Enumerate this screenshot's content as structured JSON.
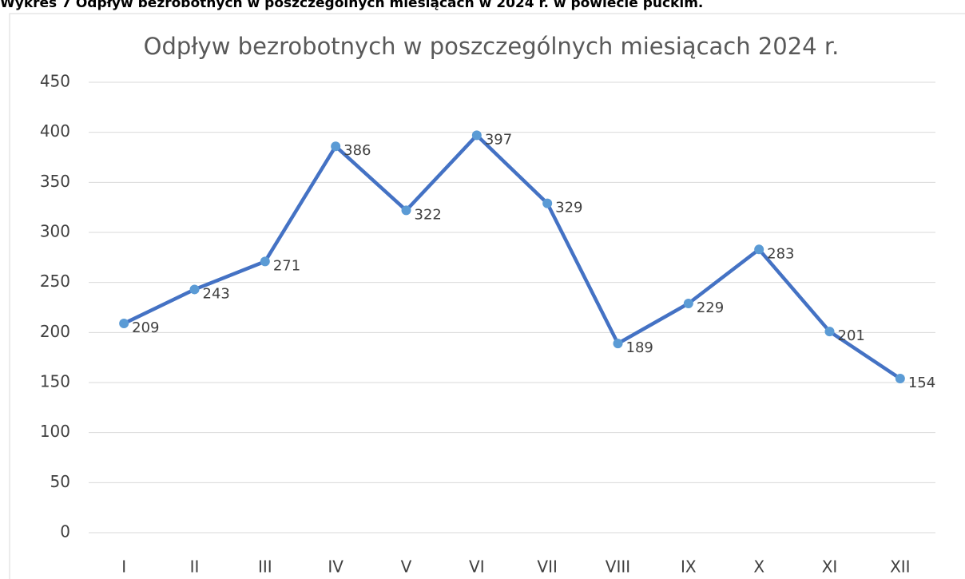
{
  "caption": "Wykres 7 Odpływ bezrobotnych w poszczególnych miesiącach w 2024 r. w powiecie puckim.",
  "chart_data": {
    "type": "line",
    "title": "Odpływ bezrobotnych w poszczególnych miesiącach 2024 r.",
    "categories": [
      "I",
      "II",
      "III",
      "IV",
      "V",
      "VI",
      "VII",
      "VIII",
      "IX",
      "X",
      "XI",
      "XII"
    ],
    "values": [
      209,
      243,
      271,
      386,
      322,
      397,
      329,
      189,
      229,
      283,
      201,
      154
    ],
    "color": "#4472c4",
    "marker_color": "#5b9bd5",
    "ylim": [
      0,
      450
    ],
    "yticks": [
      0,
      50,
      100,
      150,
      200,
      250,
      300,
      350,
      400,
      450
    ],
    "grid": true
  }
}
